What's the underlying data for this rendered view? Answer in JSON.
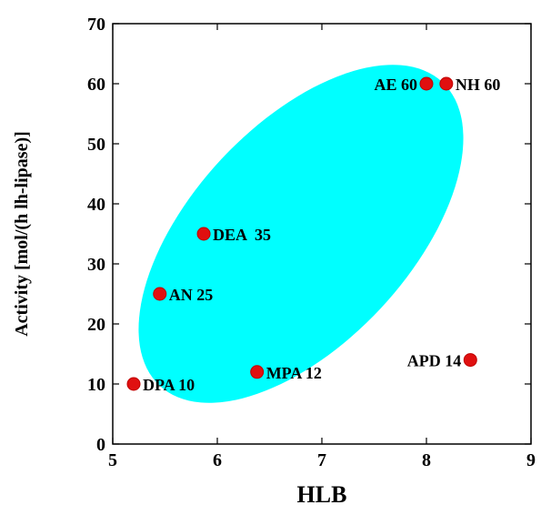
{
  "chart_data": {
    "type": "scatter",
    "xlabel": "HLB",
    "ylabel": "Activity [mol/(h lh-lipase)]",
    "xlim": [
      5,
      9
    ],
    "ylim": [
      0,
      70
    ],
    "x_ticks": [
      5,
      6,
      7,
      8,
      9
    ],
    "y_ticks": [
      0,
      10,
      20,
      30,
      40,
      50,
      60,
      70
    ],
    "grid": false,
    "legend": "none",
    "colors": {
      "point": "#e01010",
      "point_stroke": "#c00000",
      "ellipse": "#00ffff",
      "axis": "#000000"
    },
    "points": [
      {
        "label": "DPA 10",
        "x": 5.2,
        "y": 10,
        "label_side": "right"
      },
      {
        "label": "AN 25",
        "x": 5.45,
        "y": 25,
        "label_side": "right"
      },
      {
        "label": "DEA  35",
        "x": 5.87,
        "y": 35,
        "label_side": "right"
      },
      {
        "label": "MPA 12",
        "x": 6.38,
        "y": 12,
        "label_side": "right"
      },
      {
        "label": "AE 60",
        "x": 8.0,
        "y": 60,
        "label_side": "left"
      },
      {
        "label": "NH 60",
        "x": 8.19,
        "y": 60,
        "label_side": "right"
      },
      {
        "label": "APD 14",
        "x": 8.42,
        "y": 14,
        "label_side": "left"
      }
    ],
    "highlight_region": {
      "shape": "ellipse",
      "center_x": 6.8,
      "center_y": 35,
      "covers": [
        "DPA 10",
        "AN 25",
        "DEA  35",
        "MPA 12",
        "AE 60",
        "NH 60"
      ]
    }
  }
}
